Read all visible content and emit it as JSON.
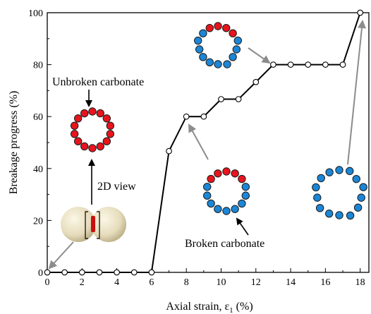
{
  "chart_data": {
    "type": "line",
    "xlabel": "Axial strain, ε",
    "xlabel_sub": "1",
    "xlabel_unit": " (%)",
    "ylabel": "Breakage progress (%)",
    "xlim": [
      0,
      18.5
    ],
    "ylim": [
      0,
      100
    ],
    "xticks": [
      0,
      2,
      4,
      6,
      8,
      10,
      12,
      14,
      16,
      18
    ],
    "yticks": [
      0,
      20,
      40,
      60,
      80,
      100
    ],
    "grid": false,
    "series": [
      {
        "marker": "open-circle",
        "line_color": "#000000",
        "x": [
          0,
          1,
          2,
          3,
          4,
          5,
          6,
          7,
          8,
          9,
          10,
          11,
          12,
          13,
          14,
          15,
          16,
          17,
          18
        ],
        "y": [
          0,
          0,
          0,
          0,
          0,
          0,
          0,
          46.7,
          60,
          60,
          66.7,
          66.7,
          73.3,
          80,
          80,
          80,
          80,
          80,
          100
        ]
      }
    ],
    "annotations": {
      "unbroken": "Unbroken carbonate",
      "broken": "Broken carbonate",
      "view2d": "2D view"
    }
  },
  "colors": {
    "unbroken_particle": "#e8141d",
    "broken_particle": "#1c86d6",
    "arrow_gray": "#8c8c8c",
    "sphere": "#e8dfbf"
  }
}
